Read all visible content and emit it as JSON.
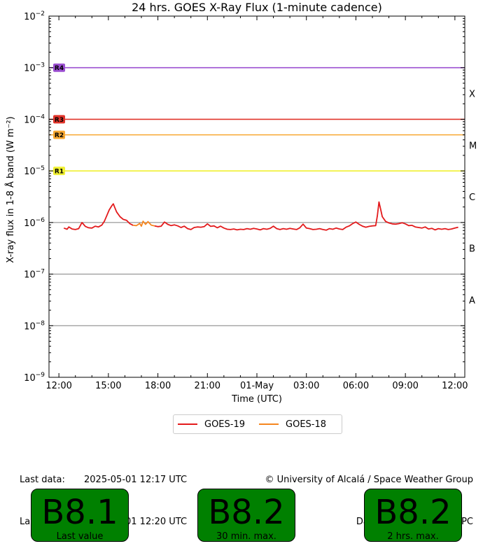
{
  "chart_data": {
    "type": "line",
    "title": "24 hrs. GOES X-Ray Flux (1-minute cadence)",
    "xlabel": "Time (UTC)",
    "ylabel": "X-ray flux in 1-8 Å band (W m⁻²)",
    "yscale": "log",
    "ylim": [
      1e-09,
      0.01
    ],
    "yticks": [
      {
        "exp": -9,
        "label": "10",
        "sup": "−9"
      },
      {
        "exp": -8,
        "label": "10",
        "sup": "−8"
      },
      {
        "exp": -7,
        "label": "10",
        "sup": "−7"
      },
      {
        "exp": -6,
        "label": "10",
        "sup": "−6"
      },
      {
        "exp": -5,
        "label": "10",
        "sup": "−5"
      },
      {
        "exp": -4,
        "label": "10",
        "sup": "−4"
      },
      {
        "exp": -3,
        "label": "10",
        "sup": "−3"
      },
      {
        "exp": -2,
        "label": "10",
        "sup": "−2"
      }
    ],
    "xlim_hours": [
      11.4,
      36.6
    ],
    "xticks": [
      {
        "h": 12,
        "label": "12:00"
      },
      {
        "h": 15,
        "label": "15:00"
      },
      {
        "h": 18,
        "label": "18:00"
      },
      {
        "h": 21,
        "label": "21:00"
      },
      {
        "h": 24,
        "label": "01-May"
      },
      {
        "h": 27,
        "label": "03:00"
      },
      {
        "h": 30,
        "label": "06:00"
      },
      {
        "h": 33,
        "label": "09:00"
      },
      {
        "h": 36,
        "label": "12:00"
      }
    ],
    "grid_lines": [
      1e-08,
      1e-07,
      1e-06
    ],
    "class_labels": [
      {
        "label": "X",
        "exp": -3.5
      },
      {
        "label": "M",
        "exp": -4.5
      },
      {
        "label": "C",
        "exp": -5.5
      },
      {
        "label": "B",
        "exp": -6.5
      },
      {
        "label": "A",
        "exp": -7.5
      }
    ],
    "thresholds": [
      {
        "label": "R4",
        "value": 0.001,
        "color": "#9b4fd1"
      },
      {
        "label": "R3",
        "value": 0.0001,
        "color": "#e0342a"
      },
      {
        "label": "R2",
        "value": 5e-05,
        "color": "#f7a731"
      },
      {
        "label": "R1",
        "value": 1e-05,
        "color": "#f0f032"
      }
    ],
    "series": [
      {
        "name": "GOES-19",
        "color": "#e31a1c",
        "segments": [
          [
            [
              12.3,
              7.8e-07
            ],
            [
              12.5,
              7.4e-07
            ],
            [
              12.6,
              8.2e-07
            ],
            [
              12.8,
              7.5e-07
            ],
            [
              13.0,
              7.3e-07
            ],
            [
              13.2,
              7.6e-07
            ],
            [
              13.4,
              1e-06
            ],
            [
              13.6,
              8.4e-07
            ],
            [
              13.8,
              7.9e-07
            ],
            [
              14.0,
              7.8e-07
            ],
            [
              14.2,
              8.5e-07
            ],
            [
              14.4,
              8.2e-07
            ],
            [
              14.6,
              8.9e-07
            ],
            [
              14.75,
              1.05e-06
            ],
            [
              14.9,
              1.35e-06
            ],
            [
              15.05,
              1.75e-06
            ],
            [
              15.2,
              2.1e-06
            ],
            [
              15.3,
              2.3e-06
            ],
            [
              15.4,
              1.9e-06
            ],
            [
              15.5,
              1.6e-06
            ],
            [
              15.7,
              1.3e-06
            ],
            [
              15.9,
              1.15e-06
            ],
            [
              16.1,
              1.1e-06
            ],
            [
              16.3,
              9.5e-07
            ],
            [
              16.5,
              8.8e-07
            ]
          ],
          [
            [
              17.8,
              8.6e-07
            ],
            [
              18.0,
              8.3e-07
            ],
            [
              18.2,
              8.5e-07
            ],
            [
              18.4,
              1.02e-06
            ],
            [
              18.6,
              9.2e-07
            ],
            [
              18.8,
              8.7e-07
            ],
            [
              19.0,
              9e-07
            ],
            [
              19.2,
              8.6e-07
            ],
            [
              19.4,
              8e-07
            ],
            [
              19.6,
              8.5e-07
            ],
            [
              19.8,
              7.6e-07
            ],
            [
              20.0,
              7.3e-07
            ],
            [
              20.2,
              8e-07
            ],
            [
              20.4,
              8.2e-07
            ],
            [
              20.6,
              8.1e-07
            ],
            [
              20.8,
              8.3e-07
            ],
            [
              21.0,
              9.4e-07
            ],
            [
              21.2,
              8.4e-07
            ],
            [
              21.4,
              8.6e-07
            ],
            [
              21.6,
              7.9e-07
            ],
            [
              21.8,
              8.5e-07
            ],
            [
              22.0,
              7.8e-07
            ],
            [
              22.2,
              7.4e-07
            ],
            [
              22.4,
              7.3e-07
            ],
            [
              22.6,
              7.5e-07
            ],
            [
              22.8,
              7.2e-07
            ],
            [
              23.0,
              7.4e-07
            ],
            [
              23.2,
              7.3e-07
            ],
            [
              23.4,
              7.6e-07
            ],
            [
              23.6,
              7.4e-07
            ],
            [
              23.8,
              7.7e-07
            ],
            [
              24.0,
              7.5e-07
            ],
            [
              24.2,
              7.2e-07
            ],
            [
              24.4,
              7.6e-07
            ],
            [
              24.6,
              7.4e-07
            ],
            [
              24.8,
              7.7e-07
            ],
            [
              25.0,
              8.5e-07
            ],
            [
              25.2,
              7.6e-07
            ],
            [
              25.4,
              7.3e-07
            ],
            [
              25.6,
              7.6e-07
            ],
            [
              25.8,
              7.4e-07
            ],
            [
              26.0,
              7.7e-07
            ],
            [
              26.2,
              7.5e-07
            ],
            [
              26.4,
              7.3e-07
            ],
            [
              26.6,
              7.9e-07
            ],
            [
              26.8,
              9.3e-07
            ],
            [
              27.0,
              7.8e-07
            ],
            [
              27.2,
              7.6e-07
            ],
            [
              27.4,
              7.3e-07
            ],
            [
              27.6,
              7.4e-07
            ],
            [
              27.8,
              7.6e-07
            ],
            [
              28.0,
              7.3e-07
            ],
            [
              28.2,
              7.1e-07
            ],
            [
              28.4,
              7.6e-07
            ],
            [
              28.6,
              7.4e-07
            ],
            [
              28.8,
              7.8e-07
            ],
            [
              29.0,
              7.5e-07
            ],
            [
              29.2,
              7.3e-07
            ],
            [
              29.4,
              8.1e-07
            ],
            [
              29.6,
              8.6e-07
            ],
            [
              29.8,
              9.5e-07
            ],
            [
              30.0,
              1.02e-06
            ],
            [
              30.2,
              9.2e-07
            ],
            [
              30.4,
              8.5e-07
            ],
            [
              30.6,
              8.1e-07
            ],
            [
              30.8,
              8.4e-07
            ],
            [
              31.0,
              8.6e-07
            ],
            [
              31.2,
              8.7e-07
            ],
            [
              31.3,
              1.35e-06
            ],
            [
              31.4,
              2.5e-06
            ],
            [
              31.5,
              1.8e-06
            ],
            [
              31.6,
              1.3e-06
            ],
            [
              31.8,
              1.05e-06
            ],
            [
              32.0,
              9.8e-07
            ],
            [
              32.2,
              9.4e-07
            ],
            [
              32.4,
              9.3e-07
            ],
            [
              32.6,
              9.5e-07
            ],
            [
              32.8,
              9.9e-07
            ],
            [
              33.0,
              9.4e-07
            ],
            [
              33.2,
              8.7e-07
            ],
            [
              33.4,
              8.8e-07
            ],
            [
              33.6,
              8.2e-07
            ],
            [
              33.8,
              8e-07
            ],
            [
              34.0,
              7.8e-07
            ],
            [
              34.2,
              8.2e-07
            ],
            [
              34.4,
              7.5e-07
            ],
            [
              34.6,
              7.7e-07
            ],
            [
              34.8,
              7.2e-07
            ],
            [
              35.0,
              7.6e-07
            ],
            [
              35.2,
              7.4e-07
            ],
            [
              35.4,
              7.6e-07
            ],
            [
              35.6,
              7.3e-07
            ],
            [
              35.8,
              7.5e-07
            ],
            [
              36.0,
              7.8e-07
            ],
            [
              36.2,
              8.1e-07
            ]
          ]
        ]
      },
      {
        "name": "GOES-18",
        "color": "#f5861f",
        "segments": [
          [
            [
              16.5,
              8.8e-07
            ],
            [
              16.7,
              8.7e-07
            ],
            [
              16.9,
              9.6e-07
            ],
            [
              17.0,
              8.5e-07
            ],
            [
              17.1,
              1.06e-06
            ],
            [
              17.25,
              9.2e-07
            ],
            [
              17.4,
              1.04e-06
            ],
            [
              17.6,
              8.9e-07
            ],
            [
              17.8,
              8.6e-07
            ]
          ]
        ]
      }
    ]
  },
  "legend": {
    "items": [
      {
        "label": "GOES-19",
        "color": "#e31a1c"
      },
      {
        "label": "GOES-18",
        "color": "#f5861f"
      }
    ]
  },
  "info": {
    "last_data_label": "Last data:",
    "last_data_value": "2025-05-01 12:17 UTC",
    "last_update_label": "Last update:",
    "last_update_value": "2025-05-01 12:20 UTC",
    "credit": "© University of Alcalá / Space Weather Group",
    "source": "Data source: NOAA/SWPC"
  },
  "summary": [
    {
      "value": "B8.1",
      "caption": "Last value"
    },
    {
      "value": "B8.2",
      "caption": "30 min. max."
    },
    {
      "value": "B8.2",
      "caption": "2 hrs. max."
    }
  ],
  "colors": {
    "status_box": "#008000",
    "grid": "#808080"
  }
}
